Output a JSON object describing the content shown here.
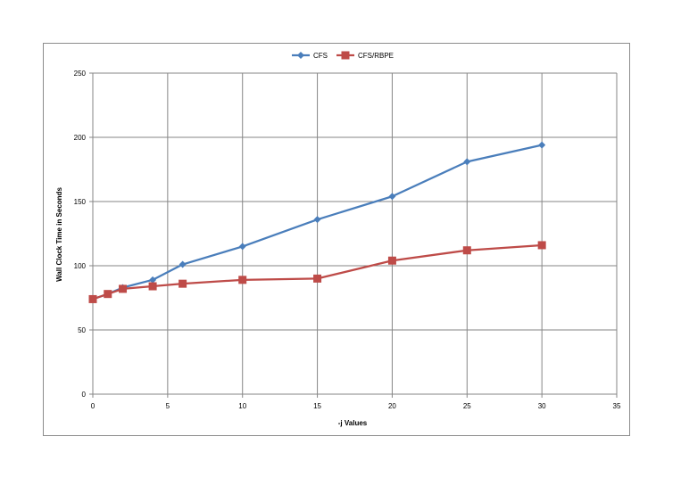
{
  "chart_data": {
    "type": "line",
    "title": "",
    "xlabel": "-j Values",
    "ylabel": "Wall Clock Time in Seconds",
    "xlim": [
      0,
      35
    ],
    "ylim": [
      0,
      250
    ],
    "x_ticks": [
      0,
      5,
      10,
      15,
      20,
      25,
      30,
      35
    ],
    "y_ticks": [
      0,
      50,
      100,
      150,
      200,
      250
    ],
    "grid": true,
    "legend_position": "top-center",
    "series": [
      {
        "name": "CFS",
        "color": "#4a7ebb",
        "marker": "diamond",
        "x": [
          0,
          1,
          2,
          4,
          6,
          10,
          15,
          20,
          25,
          30
        ],
        "y": [
          74,
          78,
          83,
          89,
          101,
          115,
          136,
          154,
          181,
          194
        ]
      },
      {
        "name": "CFS/RBPE",
        "color": "#be4b48",
        "marker": "square",
        "x": [
          0,
          1,
          2,
          4,
          6,
          10,
          15,
          20,
          25,
          30
        ],
        "y": [
          74,
          78,
          82,
          84,
          86,
          89,
          90,
          104,
          112,
          116
        ]
      }
    ]
  }
}
